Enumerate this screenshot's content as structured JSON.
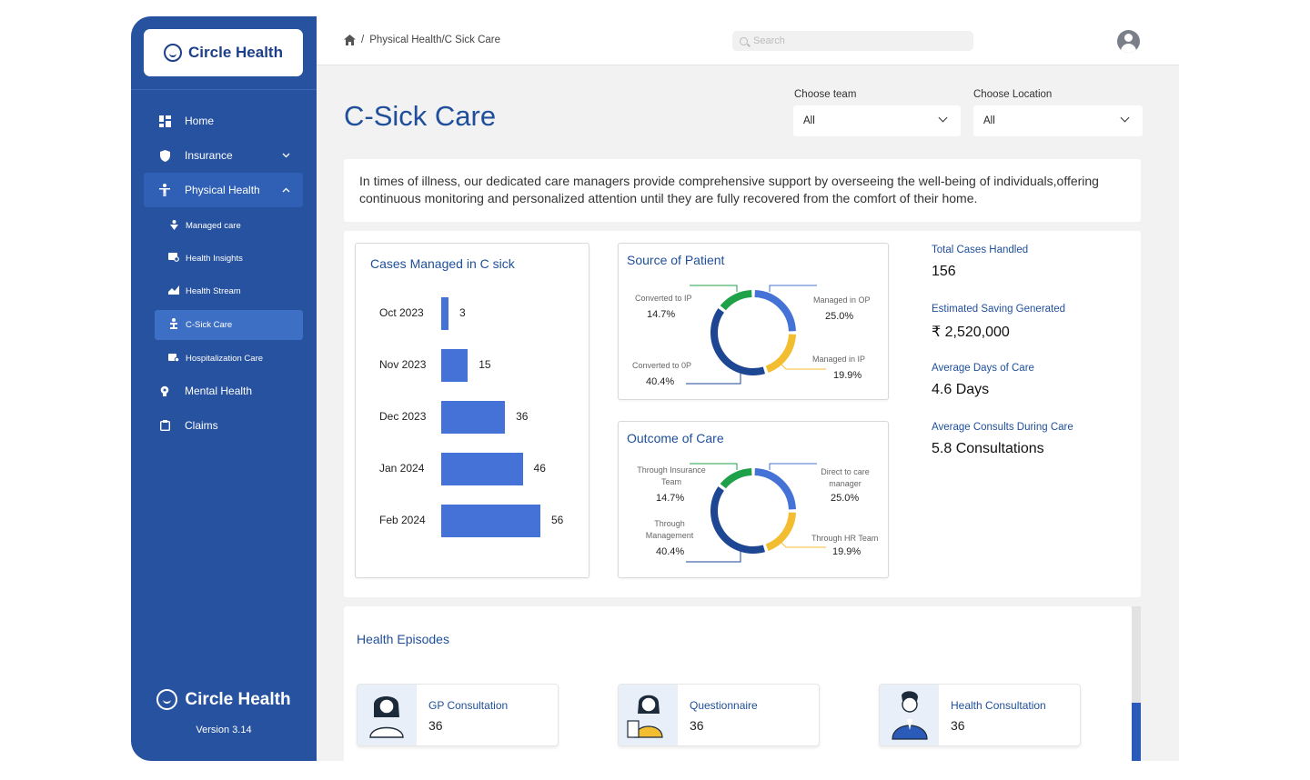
{
  "sidebar": {
    "brand": "Circle Health",
    "items": [
      {
        "label": "Home",
        "icon": "dashboard-icon"
      },
      {
        "label": "Insurance",
        "icon": "shield-icon"
      },
      {
        "label": "Physical Health",
        "icon": "person-icon"
      },
      {
        "label": "Mental Health",
        "icon": "bulb-icon"
      },
      {
        "label": "Claims",
        "icon": "clipboard-icon"
      }
    ],
    "sub_items": [
      {
        "label": "Managed care",
        "icon": "care-icon"
      },
      {
        "label": "Health Insights",
        "icon": "insights-icon"
      },
      {
        "label": "Health Stream",
        "icon": "stream-icon"
      },
      {
        "label": "C-Sick Care",
        "icon": "sick-care-icon"
      },
      {
        "label": "Hospitalization Care",
        "icon": "hospital-icon"
      }
    ],
    "footer_brand": "Circle Health",
    "version": "Version 3.14"
  },
  "topbar": {
    "breadcrumb": "Physical Health/C Sick Care",
    "breadcrumb_sep": "/",
    "search_placeholder": "Search"
  },
  "page": {
    "title": "C-Sick Care",
    "team_label": "Choose team",
    "team_value": "All",
    "location_label": "Choose Location",
    "location_value": "All",
    "description": "In times of illness, our dedicated care managers provide comprehensive support by overseeing the well-being of individuals,offering continuous monitoring and personalized attention until they are fully recovered from the comfort of their home."
  },
  "colors": {
    "primary": "#27529f",
    "accent_blue": "#4472d6",
    "green": "#1fa14a",
    "yellow": "#f3bd31",
    "dark_blue": "#1d4693"
  },
  "chart_data": [
    {
      "type": "bar",
      "title": "Cases Managed in C sick",
      "categories": [
        "Oct 2023",
        "Nov 2023",
        "Dec 2023",
        "Jan 2024",
        "Feb 2024"
      ],
      "values": [
        3,
        15,
        36,
        46,
        56
      ]
    },
    {
      "type": "pie",
      "title": "Source of Patient",
      "slices": [
        {
          "label": "Managed in OP",
          "value": 25.0,
          "display": "25.0%"
        },
        {
          "label": "Managed in IP",
          "value": 19.9,
          "display": "19.9%"
        },
        {
          "label": "Converted to 0P",
          "value": 40.4,
          "display": "40.4%"
        },
        {
          "label": "Converted to IP",
          "value": 14.7,
          "display": "14.7%"
        }
      ]
    },
    {
      "type": "pie",
      "title": "Outcome of Care",
      "slices": [
        {
          "label": "Direct to care manager",
          "value": 25.0,
          "display": "25.0%"
        },
        {
          "label": "Through HR Team",
          "value": 19.9,
          "display": "19.9%"
        },
        {
          "label": "Through Management",
          "value": 40.4,
          "display": "40.4%"
        },
        {
          "label": "Through Insurance Team",
          "value": 14.7,
          "display": "14.7%"
        }
      ]
    }
  ],
  "stats": [
    {
      "label": "Total Cases Handled",
      "value": "156"
    },
    {
      "label": "Estimated Saving Generated",
      "value": "₹ 2,520,000"
    },
    {
      "label": "Average Days of Care",
      "value": "4.6 Days"
    },
    {
      "label": "Average Consults During Care",
      "value": "5.8 Consultations"
    }
  ],
  "episodes": {
    "title": "Health Episodes",
    "cards": [
      {
        "label": "GP Consultation",
        "count": "36"
      },
      {
        "label": "Questionnaire",
        "count": "36"
      },
      {
        "label": "Health Consultation",
        "count": "36"
      }
    ]
  }
}
